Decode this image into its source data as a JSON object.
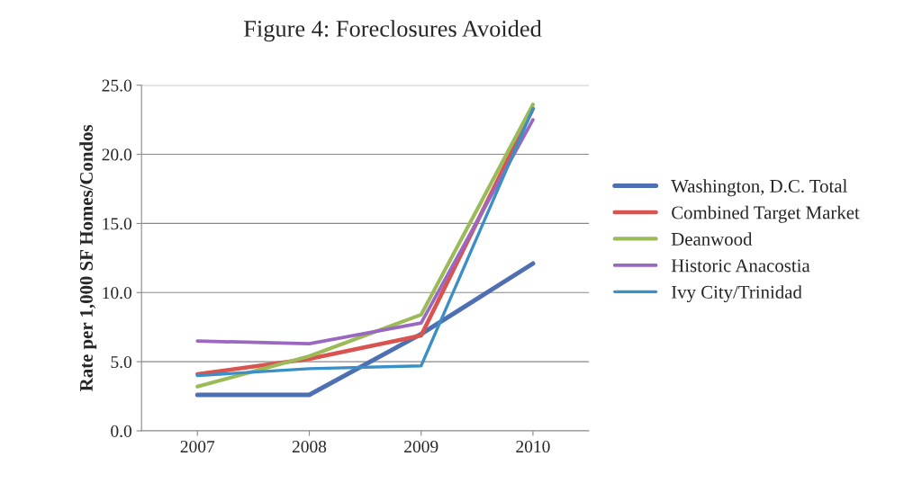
{
  "chart_data": {
    "type": "line",
    "title": "Figure 4: Foreclosures Avoided",
    "ylabel": "Rate per 1,000 SF Homes/Condos",
    "categories": [
      "2007",
      "2008",
      "2009",
      "2010"
    ],
    "series": [
      {
        "name": "Washington, D.C. Total",
        "color": "#4f6fb3",
        "values": [
          2.6,
          2.6,
          7.0,
          12.1
        ]
      },
      {
        "name": "Combined Target Market",
        "color": "#d9534f",
        "values": [
          4.1,
          5.2,
          6.9,
          23.3
        ]
      },
      {
        "name": "Deanwood",
        "color": "#9bbb59",
        "values": [
          3.2,
          5.4,
          8.4,
          23.6
        ]
      },
      {
        "name": "Historic Anacostia",
        "color": "#9a68c0",
        "values": [
          6.5,
          6.3,
          7.8,
          22.5
        ]
      },
      {
        "name": "Ivy City/Trinidad",
        "color": "#3a8fc6",
        "values": [
          4.0,
          4.5,
          4.7,
          23.3
        ]
      }
    ],
    "ylim": [
      0,
      25
    ],
    "yticks": [
      {
        "value": 0,
        "label": "0.0"
      },
      {
        "value": 5,
        "label": "5.0"
      },
      {
        "value": 10,
        "label": "10.0"
      },
      {
        "value": 15,
        "label": "15.0"
      },
      {
        "value": 20,
        "label": "20.0"
      },
      {
        "value": 25,
        "label": "25.0"
      }
    ],
    "grid": "y",
    "legend": "right",
    "marker": "none",
    "line_style": "solid"
  }
}
